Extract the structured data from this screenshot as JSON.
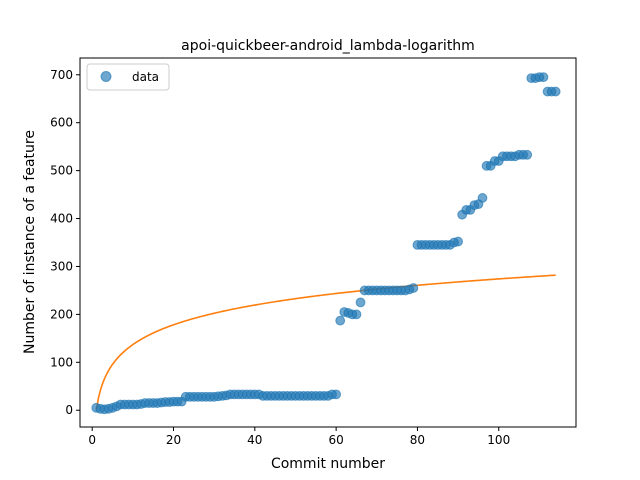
{
  "chart_data": {
    "type": "scatter",
    "title": "apoi-quickbeer-android_lambda-logarithm",
    "xlabel": "Commit number",
    "ylabel": "Number of instance of a feature",
    "xlim": [
      -3,
      119
    ],
    "ylim": [
      -35,
      735
    ],
    "xticks": [
      0,
      20,
      40,
      60,
      80,
      100
    ],
    "yticks": [
      0,
      100,
      200,
      300,
      400,
      500,
      600,
      700
    ],
    "grid": false,
    "legend_position": "upper-left",
    "series": [
      {
        "name": "data",
        "kind": "scatter",
        "color": "#1f77b4",
        "points": [
          [
            1,
            5
          ],
          [
            2,
            3
          ],
          [
            3,
            2
          ],
          [
            4,
            3
          ],
          [
            5,
            5
          ],
          [
            6,
            8
          ],
          [
            7,
            12
          ],
          [
            8,
            12
          ],
          [
            9,
            12
          ],
          [
            10,
            12
          ],
          [
            11,
            12
          ],
          [
            12,
            13
          ],
          [
            13,
            15
          ],
          [
            14,
            15
          ],
          [
            15,
            15
          ],
          [
            16,
            15
          ],
          [
            17,
            16
          ],
          [
            18,
            17
          ],
          [
            19,
            17
          ],
          [
            20,
            18
          ],
          [
            21,
            18
          ],
          [
            22,
            18
          ],
          [
            23,
            28
          ],
          [
            24,
            28
          ],
          [
            25,
            28
          ],
          [
            26,
            28
          ],
          [
            27,
            28
          ],
          [
            28,
            28
          ],
          [
            29,
            28
          ],
          [
            30,
            28
          ],
          [
            31,
            29
          ],
          [
            32,
            30
          ],
          [
            33,
            31
          ],
          [
            34,
            33
          ],
          [
            35,
            33
          ],
          [
            36,
            33
          ],
          [
            37,
            33
          ],
          [
            38,
            33
          ],
          [
            39,
            33
          ],
          [
            40,
            33
          ],
          [
            41,
            33
          ],
          [
            42,
            30
          ],
          [
            43,
            30
          ],
          [
            44,
            30
          ],
          [
            45,
            30
          ],
          [
            46,
            30
          ],
          [
            47,
            30
          ],
          [
            48,
            30
          ],
          [
            49,
            30
          ],
          [
            50,
            30
          ],
          [
            51,
            30
          ],
          [
            52,
            30
          ],
          [
            53,
            30
          ],
          [
            54,
            30
          ],
          [
            55,
            30
          ],
          [
            56,
            30
          ],
          [
            57,
            30
          ],
          [
            58,
            30
          ],
          [
            59,
            33
          ],
          [
            60,
            33
          ],
          [
            61,
            187
          ],
          [
            62,
            205
          ],
          [
            63,
            203
          ],
          [
            64,
            200
          ],
          [
            65,
            200
          ],
          [
            66,
            225
          ],
          [
            67,
            250
          ],
          [
            68,
            250
          ],
          [
            69,
            250
          ],
          [
            70,
            250
          ],
          [
            71,
            250
          ],
          [
            72,
            250
          ],
          [
            73,
            250
          ],
          [
            74,
            250
          ],
          [
            75,
            250
          ],
          [
            76,
            250
          ],
          [
            77,
            250
          ],
          [
            78,
            252
          ],
          [
            79,
            255
          ],
          [
            80,
            345
          ],
          [
            81,
            345
          ],
          [
            82,
            345
          ],
          [
            83,
            345
          ],
          [
            84,
            345
          ],
          [
            85,
            345
          ],
          [
            86,
            345
          ],
          [
            87,
            345
          ],
          [
            88,
            345
          ],
          [
            89,
            350
          ],
          [
            90,
            352
          ],
          [
            91,
            408
          ],
          [
            92,
            418
          ],
          [
            93,
            418
          ],
          [
            94,
            428
          ],
          [
            95,
            430
          ],
          [
            96,
            443
          ],
          [
            97,
            510
          ],
          [
            98,
            510
          ],
          [
            99,
            520
          ],
          [
            100,
            520
          ],
          [
            101,
            530
          ],
          [
            102,
            530
          ],
          [
            103,
            530
          ],
          [
            104,
            530
          ],
          [
            105,
            533
          ],
          [
            106,
            533
          ],
          [
            107,
            533
          ],
          [
            108,
            693
          ],
          [
            109,
            693
          ],
          [
            110,
            695
          ],
          [
            111,
            695
          ],
          [
            112,
            665
          ],
          [
            113,
            665
          ],
          [
            114,
            665
          ]
        ]
      },
      {
        "name": "fit",
        "kind": "line",
        "color": "#ff7f0e",
        "model": "logarithm",
        "a": 0,
        "b": 59.5,
        "x_range": [
          1,
          114
        ]
      }
    ]
  }
}
